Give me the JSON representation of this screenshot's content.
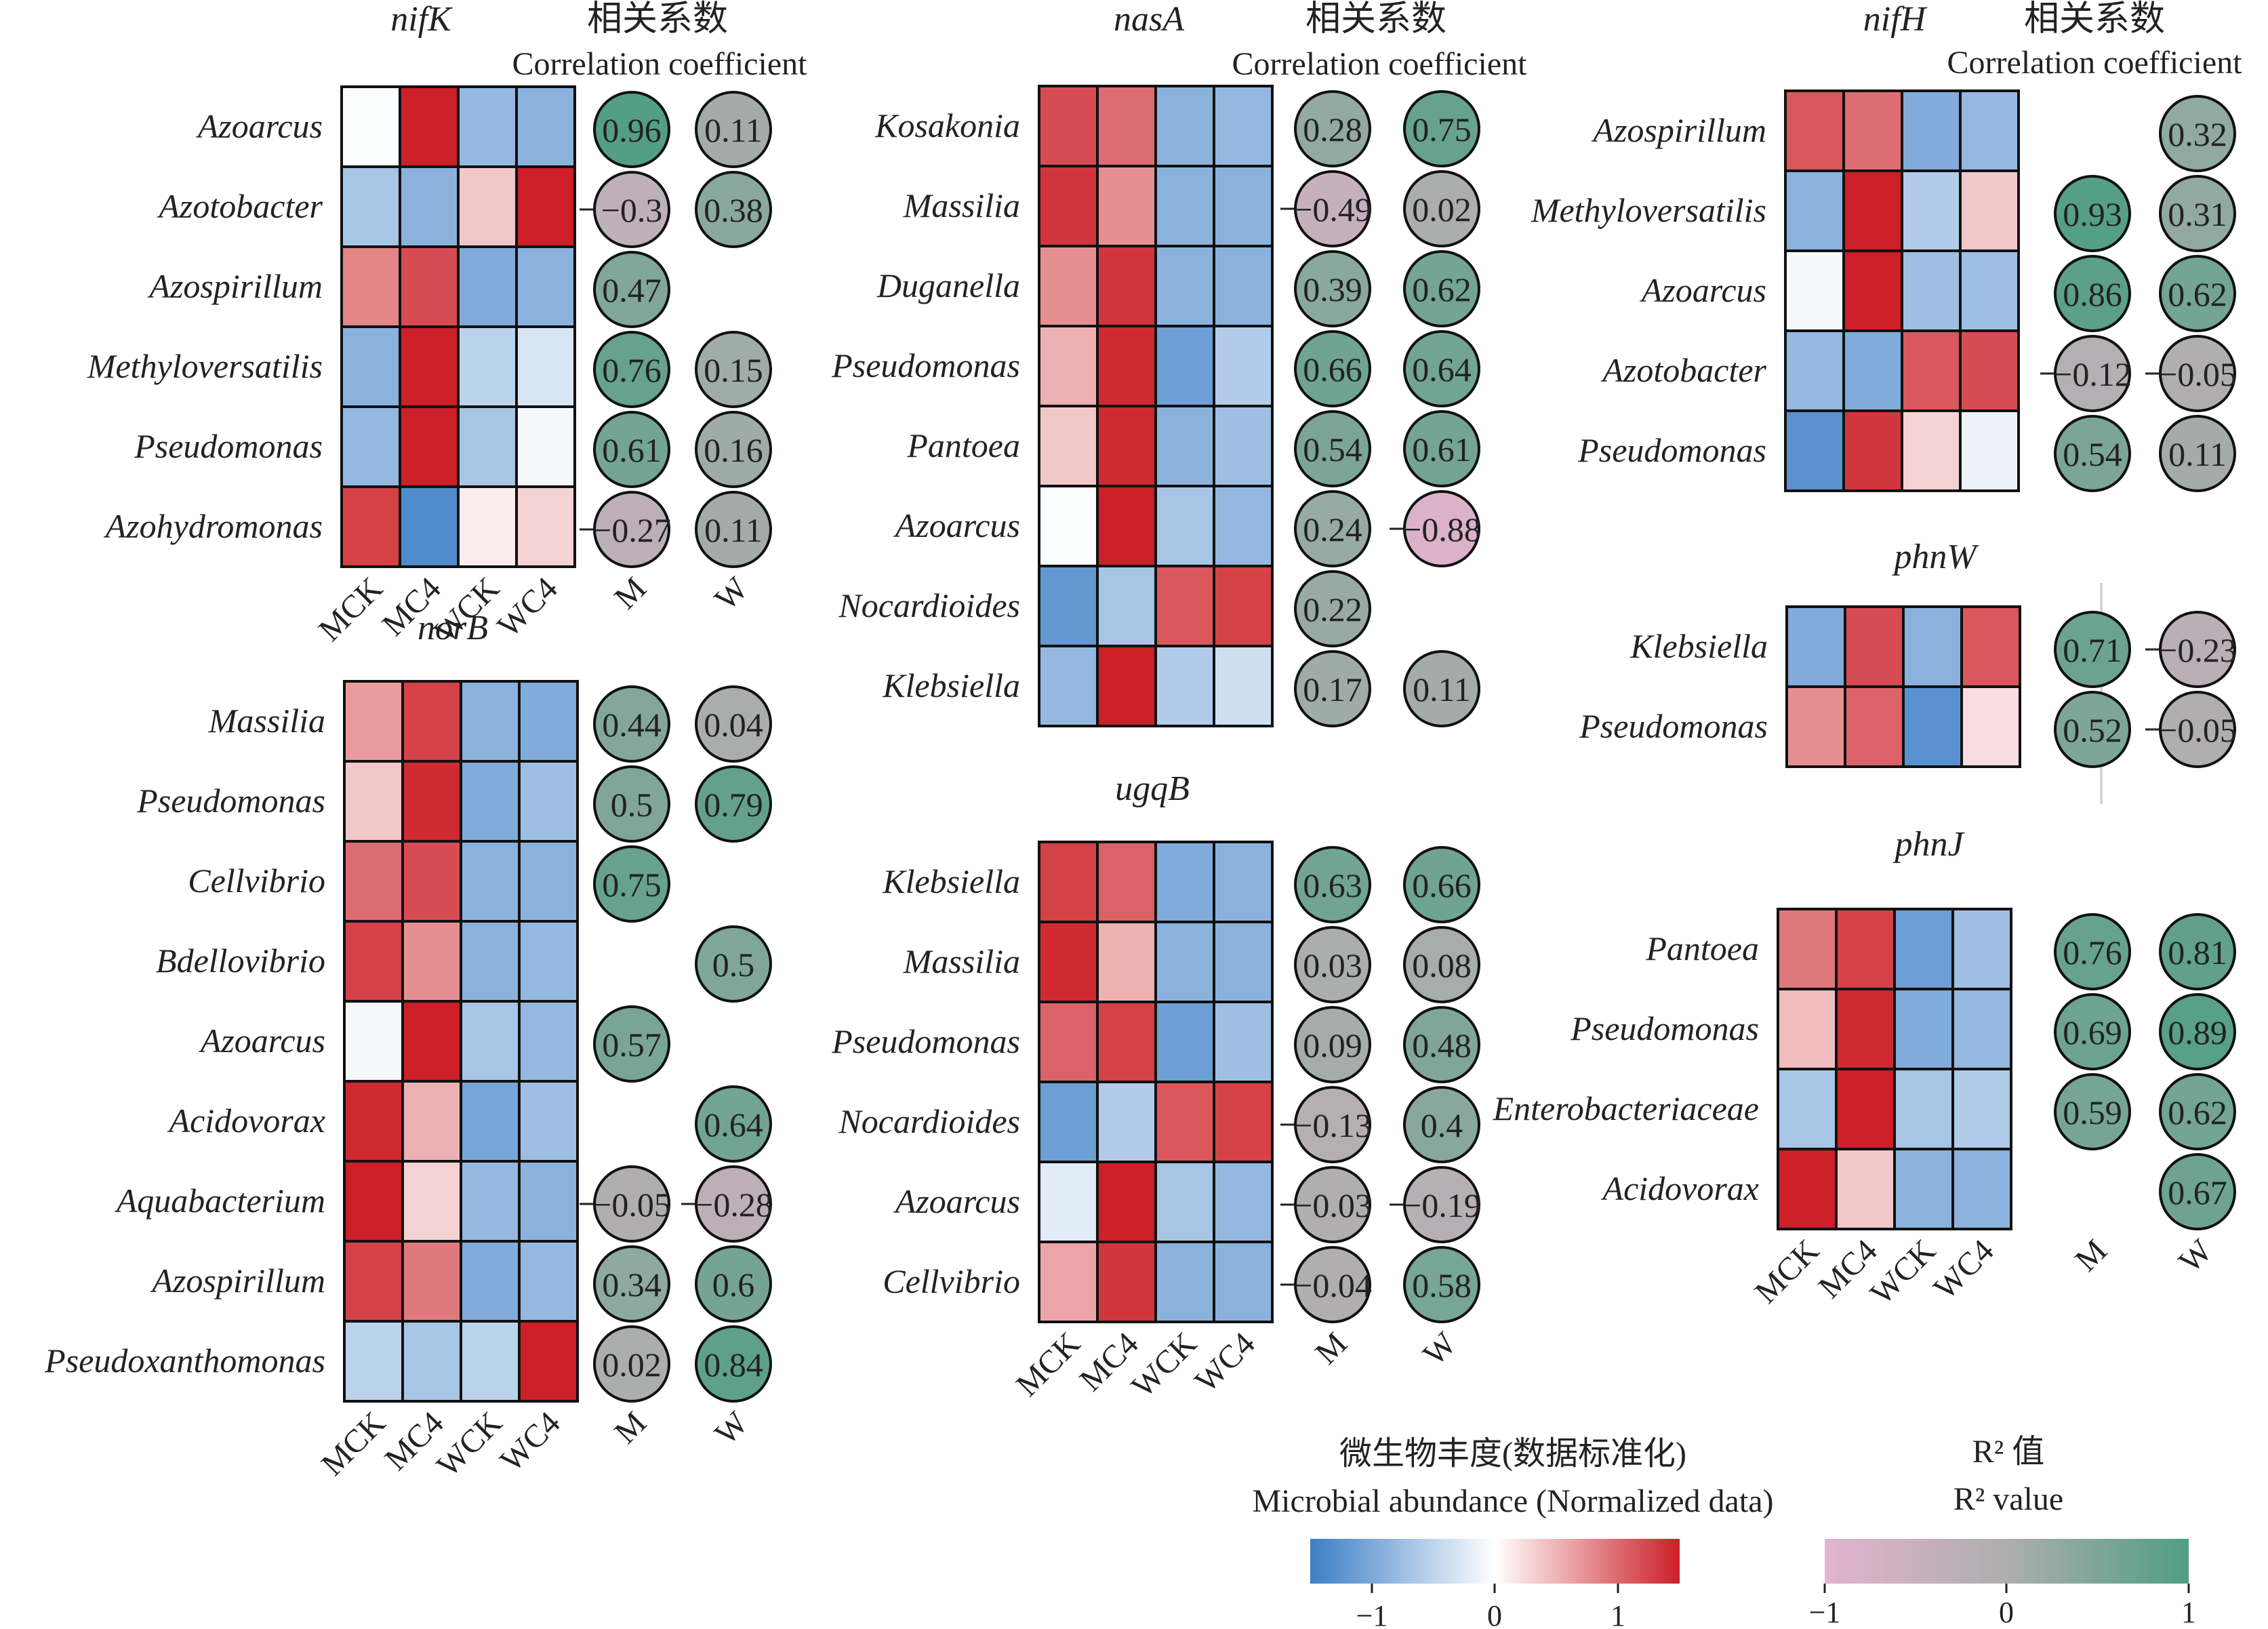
{
  "chart_data": {
    "type": "heatmap",
    "columns": [
      "MCK",
      "MC4",
      "WCK",
      "WC4"
    ],
    "circle_columns": [
      "M",
      "W"
    ],
    "corr_header_cn": "相关系数",
    "corr_header_en": "Correlation coefficient",
    "panels": [
      {
        "gene": "nifK",
        "show_corr_header": true,
        "show_xlabels": true,
        "rows": [
          {
            "taxon": "Azoarcus",
            "values": [
              -0.02,
              1.0,
              -0.55,
              -0.6
            ],
            "M": 0.96,
            "W": 0.11
          },
          {
            "taxon": "Azotobacter",
            "values": [
              -0.45,
              -0.6,
              0.25,
              1.0
            ],
            "M": -0.3,
            "W": 0.38
          },
          {
            "taxon": "Azospirillum",
            "values": [
              0.55,
              0.8,
              -0.65,
              -0.6
            ],
            "M": 0.47,
            "W": null
          },
          {
            "taxon": "Methyloversatilis",
            "values": [
              -0.6,
              1.0,
              -0.35,
              -0.2
            ],
            "M": 0.76,
            "W": 0.15
          },
          {
            "taxon": "Pseudomonas",
            "values": [
              -0.55,
              1.0,
              -0.45,
              -0.05
            ],
            "M": 0.61,
            "W": 0.16
          },
          {
            "taxon": "Azohydromonas",
            "values": [
              0.85,
              -0.9,
              0.08,
              0.2
            ],
            "M": -0.27,
            "W": 0.11
          }
        ]
      },
      {
        "gene": "norB",
        "show_corr_header": false,
        "show_xlabels": true,
        "rows": [
          {
            "taxon": "Massilia",
            "values": [
              0.45,
              0.85,
              -0.6,
              -0.65
            ],
            "M": 0.44,
            "W": 0.04
          },
          {
            "taxon": "Pseudomonas",
            "values": [
              0.25,
              0.95,
              -0.65,
              -0.5
            ],
            "M": 0.5,
            "W": 0.79
          },
          {
            "taxon": "Cellvibrio",
            "values": [
              0.65,
              0.8,
              -0.6,
              -0.6
            ],
            "M": 0.75,
            "W": null
          },
          {
            "taxon": "Bdellovibrio",
            "values": [
              0.85,
              0.5,
              -0.6,
              -0.55
            ],
            "M": null,
            "W": 0.5
          },
          {
            "taxon": "Azoarcus",
            "values": [
              -0.05,
              1.0,
              -0.45,
              -0.55
            ],
            "M": 0.57,
            "W": null
          },
          {
            "taxon": "Acidovorax",
            "values": [
              0.95,
              0.35,
              -0.7,
              -0.5
            ],
            "M": null,
            "W": 0.64
          },
          {
            "taxon": "Aquabacterium",
            "values": [
              1.0,
              0.2,
              -0.55,
              -0.6
            ],
            "M": -0.05,
            "W": -0.28
          },
          {
            "taxon": "Azospirillum",
            "values": [
              0.85,
              0.6,
              -0.65,
              -0.55
            ],
            "M": 0.34,
            "W": 0.6
          },
          {
            "taxon": "Pseudoxanthomonas",
            "values": [
              -0.35,
              -0.45,
              -0.35,
              1.0
            ],
            "M": 0.02,
            "W": 0.84
          }
        ]
      },
      {
        "gene": "nasA",
        "show_corr_header": true,
        "show_xlabels": false,
        "rows": [
          {
            "taxon": "Kosakonia",
            "values": [
              0.8,
              0.65,
              -0.6,
              -0.55
            ],
            "M": 0.28,
            "W": 0.75
          },
          {
            "taxon": "Massilia",
            "values": [
              0.9,
              0.5,
              -0.6,
              -0.6
            ],
            "M": -0.49,
            "W": 0.02
          },
          {
            "taxon": "Duganella",
            "values": [
              0.5,
              0.9,
              -0.6,
              -0.6
            ],
            "M": 0.39,
            "W": 0.62
          },
          {
            "taxon": "Pseudomonas",
            "values": [
              0.35,
              0.95,
              -0.75,
              -0.4
            ],
            "M": 0.66,
            "W": 0.64
          },
          {
            "taxon": "Pantoea",
            "values": [
              0.25,
              0.95,
              -0.6,
              -0.5
            ],
            "M": 0.54,
            "W": 0.61
          },
          {
            "taxon": "Azoarcus",
            "values": [
              -0.02,
              1.0,
              -0.45,
              -0.55
            ],
            "M": 0.24,
            "W": -0.88
          },
          {
            "taxon": "Nocardioides",
            "values": [
              -0.8,
              -0.45,
              0.75,
              0.85
            ],
            "M": 0.22,
            "W": null
          },
          {
            "taxon": "Klebsiella",
            "values": [
              -0.55,
              1.0,
              -0.4,
              -0.25
            ],
            "M": 0.17,
            "W": 0.11
          }
        ]
      },
      {
        "gene": "ugqB",
        "show_corr_header": false,
        "show_xlabels": true,
        "rows": [
          {
            "taxon": "Klebsiella",
            "values": [
              0.85,
              0.7,
              -0.65,
              -0.6
            ],
            "M": 0.63,
            "W": 0.66
          },
          {
            "taxon": "Massilia",
            "values": [
              0.95,
              0.35,
              -0.6,
              -0.6
            ],
            "M": 0.03,
            "W": 0.08
          },
          {
            "taxon": "Pseudomonas",
            "values": [
              0.7,
              0.85,
              -0.75,
              -0.5
            ],
            "M": 0.09,
            "W": 0.48
          },
          {
            "taxon": "Nocardioides",
            "values": [
              -0.75,
              -0.4,
              0.75,
              0.85
            ],
            "M": -0.13,
            "W": 0.4
          },
          {
            "taxon": "Azoarcus",
            "values": [
              -0.15,
              1.0,
              -0.45,
              -0.55
            ],
            "M": -0.03,
            "W": -0.19
          },
          {
            "taxon": "Cellvibrio",
            "values": [
              0.4,
              0.9,
              -0.6,
              -0.6
            ],
            "M": -0.04,
            "W": 0.58
          }
        ]
      },
      {
        "gene": "nifH",
        "show_corr_header": true,
        "show_xlabels": false,
        "rows": [
          {
            "taxon": "Azospirillum",
            "values": [
              0.75,
              0.65,
              -0.65,
              -0.55
            ],
            "M": null,
            "W": 0.32
          },
          {
            "taxon": "Methyloversatilis",
            "values": [
              -0.6,
              1.0,
              -0.4,
              0.25
            ],
            "M": 0.93,
            "W": 0.31
          },
          {
            "taxon": "Azoarcus",
            "values": [
              -0.05,
              1.0,
              -0.5,
              -0.5
            ],
            "M": 0.86,
            "W": 0.62
          },
          {
            "taxon": "Azotobacter",
            "values": [
              -0.55,
              -0.65,
              0.75,
              0.8
            ],
            "M": -0.12,
            "W": -0.05
          },
          {
            "taxon": "Pseudomonas",
            "values": [
              -0.85,
              0.9,
              0.2,
              -0.1
            ],
            "M": 0.54,
            "W": 0.11
          }
        ]
      },
      {
        "gene": "phnW",
        "show_corr_header": false,
        "show_xlabels": false,
        "rows": [
          {
            "taxon": "Klebsiella",
            "values": [
              -0.65,
              0.8,
              -0.6,
              0.75
            ],
            "M": 0.71,
            "W": -0.23
          },
          {
            "taxon": "Pseudomonas",
            "values": [
              0.5,
              0.7,
              -0.85,
              0.15
            ],
            "M": 0.52,
            "W": -0.05
          }
        ]
      },
      {
        "gene": "phnJ",
        "show_corr_header": false,
        "show_xlabels": true,
        "rows": [
          {
            "taxon": "Pantoea",
            "values": [
              0.6,
              0.85,
              -0.75,
              -0.5
            ],
            "M": 0.76,
            "W": 0.81
          },
          {
            "taxon": "Pseudomonas",
            "values": [
              0.3,
              0.95,
              -0.65,
              -0.55
            ],
            "M": 0.69,
            "W": 0.89
          },
          {
            "taxon": "Enterobacteriaceae",
            "values": [
              -0.45,
              1.0,
              -0.45,
              -0.4
            ],
            "M": 0.59,
            "W": 0.62
          },
          {
            "taxon": "Acidovorax",
            "values": [
              1.0,
              0.25,
              -0.6,
              -0.6
            ],
            "M": null,
            "W": 0.67
          }
        ]
      }
    ],
    "legend_abundance": {
      "title_cn": "微生物丰度(数据标准化)",
      "title_en": "Microbial abundance (Normalized data)",
      "ticks": [
        "−1",
        "0",
        "1"
      ],
      "range": [
        -1.5,
        1.5
      ],
      "colors": [
        "#3c7ec6",
        "#ffffff",
        "#cc1f27"
      ]
    },
    "legend_r2": {
      "title_cn": "R² 值",
      "title_en": "R² value",
      "ticks": [
        "−1",
        "0",
        "1"
      ],
      "range": [
        -1,
        1
      ],
      "colors": [
        "#e2b3cf",
        "#aeaeae",
        "#4f9e84"
      ]
    }
  }
}
